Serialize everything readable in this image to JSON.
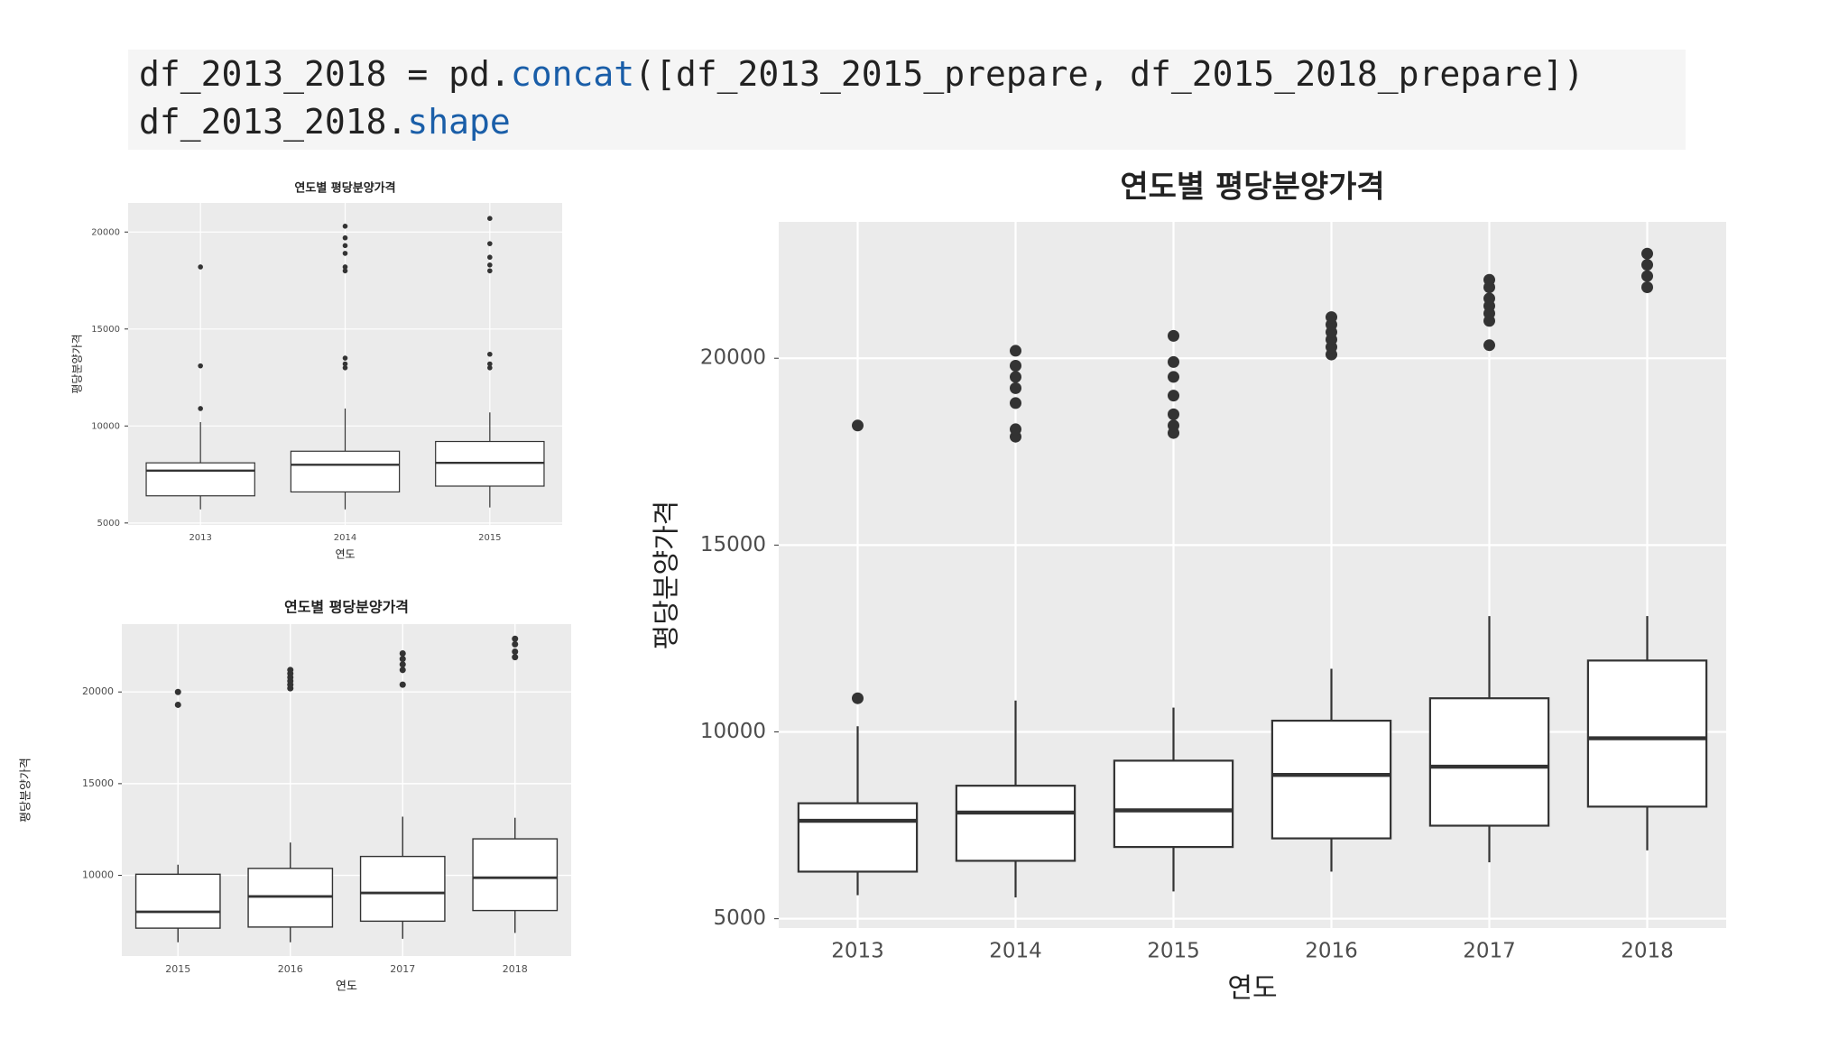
{
  "code": {
    "lines": [
      [
        "df_2013_2018 = pd.",
        "concat",
        "([df_2013_2015_prepare, df_2015_2018_prepare])"
      ],
      [
        "df_2013_2018.",
        "shape"
      ]
    ],
    "highlight_color": "#1a5ea8"
  },
  "chart_data": [
    {
      "type": "box",
      "title": "연도별 평당분양가격",
      "x_label": "연도",
      "y_label": "평당분양가격",
      "categories": [
        "2013",
        "2014",
        "2015"
      ],
      "ylim": [
        4900,
        21500
      ],
      "yticks": [
        5000,
        10000,
        15000,
        20000
      ],
      "grid": true,
      "boxes": [
        {
          "low": 5700,
          "q1": 6400,
          "median": 7700,
          "q3": 8100,
          "high": 10200,
          "outliers": [
            10900,
            13100,
            18200
          ]
        },
        {
          "low": 5700,
          "q1": 6600,
          "median": 8000,
          "q3": 8700,
          "high": 10900,
          "outliers": [
            13000,
            13200,
            13500,
            18000,
            18200,
            18900,
            19300,
            19700,
            20300
          ]
        },
        {
          "low": 5800,
          "q1": 6900,
          "median": 8100,
          "q3": 9200,
          "high": 10700,
          "outliers": [
            13000,
            13200,
            13700,
            18000,
            18300,
            18700,
            19400,
            20700
          ]
        }
      ]
    },
    {
      "type": "box",
      "title": "연도별 평당분양가격",
      "x_label": "연도",
      "y_label": "평당분양가격",
      "categories": [
        "2015",
        "2016",
        "2017",
        "2018"
      ],
      "ylim": [
        5600,
        23700
      ],
      "yticks": [
        10000,
        15000,
        20000
      ],
      "grid": true,
      "boxes": [
        {
          "low": 6350,
          "q1": 7120,
          "median": 8010,
          "q3": 10060,
          "high": 10580,
          "outliers": [
            19300,
            20000
          ]
        },
        {
          "low": 6350,
          "q1": 7180,
          "median": 8850,
          "q3": 10380,
          "high": 11790,
          "outliers": [
            20200,
            20400,
            20600,
            20800,
            21000,
            21200
          ]
        },
        {
          "low": 6540,
          "q1": 7500,
          "median": 9040,
          "q3": 11030,
          "high": 13200,
          "outliers": [
            20400,
            21200,
            21500,
            21800,
            22100
          ]
        },
        {
          "low": 6860,
          "q1": 8080,
          "median": 9870,
          "q3": 11990,
          "high": 13140,
          "outliers": [
            21900,
            22200,
            22600,
            22900
          ]
        }
      ]
    },
    {
      "type": "box",
      "title": "연도별 평당분양가격",
      "x_label": "연도",
      "y_label": "평당분양가격",
      "categories": [
        "2013",
        "2014",
        "2015",
        "2016",
        "2017",
        "2018"
      ],
      "ylim": [
        4750,
        23650
      ],
      "yticks": [
        5000,
        10000,
        15000,
        20000
      ],
      "grid": true,
      "boxes": [
        {
          "low": 5630,
          "q1": 6260,
          "median": 7620,
          "q3": 8090,
          "high": 10150,
          "outliers": [
            10900,
            18200
          ]
        },
        {
          "low": 5570,
          "q1": 6550,
          "median": 7840,
          "q3": 8560,
          "high": 10840,
          "outliers": [
            17900,
            18100,
            18800,
            19200,
            19500,
            19800,
            20200
          ]
        },
        {
          "low": 5730,
          "q1": 6920,
          "median": 7900,
          "q3": 9230,
          "high": 10650,
          "outliers": [
            18000,
            18200,
            18500,
            19000,
            19500,
            19900,
            20600
          ]
        },
        {
          "low": 6260,
          "q1": 7150,
          "median": 8850,
          "q3": 10300,
          "high": 11690,
          "outliers": [
            20100,
            20300,
            20500,
            20700,
            20900,
            21100
          ]
        },
        {
          "low": 6510,
          "q1": 7490,
          "median": 9070,
          "q3": 10900,
          "high": 13100,
          "outliers": [
            20350,
            21000,
            21200,
            21400,
            21600,
            21900,
            22100
          ]
        },
        {
          "low": 6830,
          "q1": 8000,
          "median": 9830,
          "q3": 11910,
          "high": 13100,
          "outliers": [
            21900,
            22200,
            22500,
            22800
          ]
        }
      ]
    }
  ]
}
